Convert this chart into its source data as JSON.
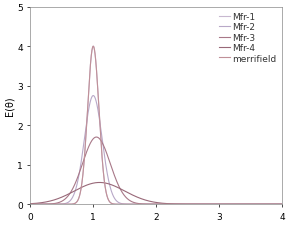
{
  "title": "",
  "xlabel": "",
  "ylabel": "E(θ)",
  "xlim": [
    0,
    4
  ],
  "ylim": [
    0,
    5
  ],
  "xticks": [
    0,
    1,
    2,
    3,
    4
  ],
  "yticks": [
    0,
    1,
    2,
    3,
    4,
    5
  ],
  "curves": [
    {
      "label": "Mfr-1",
      "mu": 1.0,
      "sigma": 0.09,
      "peak": 4.0,
      "color": "#c8b8d0",
      "lw": 0.8
    },
    {
      "label": "Mfr-2",
      "mu": 1.0,
      "sigma": 0.14,
      "peak": 2.75,
      "color": "#b8a8c8",
      "lw": 0.8
    },
    {
      "label": "Mfr-3",
      "mu": 1.05,
      "sigma": 0.22,
      "peak": 1.7,
      "color": "#a87888",
      "lw": 0.8
    },
    {
      "label": "Mfr-4",
      "mu": 1.1,
      "sigma": 0.4,
      "peak": 0.55,
      "color": "#986878",
      "lw": 0.8
    },
    {
      "label": "merrifield",
      "mu": 1.0,
      "sigma": 0.09,
      "peak": 4.0,
      "color": "#c09098",
      "lw": 0.8
    }
  ],
  "legend_fontsize": 6.5,
  "axis_fontsize": 7,
  "tick_fontsize": 6.5,
  "background_color": "#ffffff",
  "plot_bg": "#ffffff"
}
